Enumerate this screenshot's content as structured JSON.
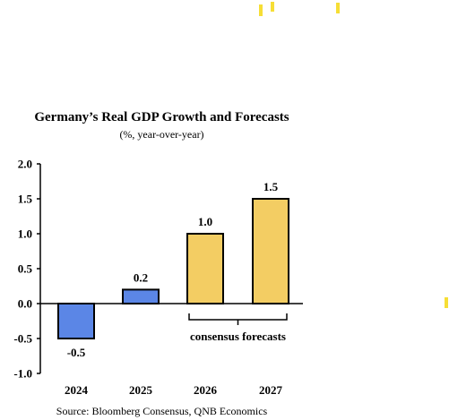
{
  "chart_data": {
    "type": "bar",
    "title": "Germany’s Real GDP Growth and Forecasts",
    "subtitle": "(%, year-over-year)",
    "categories": [
      "2024",
      "2025",
      "2026",
      "2027"
    ],
    "values": [
      -0.5,
      0.2,
      1.0,
      1.5
    ],
    "data_labels": [
      "-0.5",
      "0.2",
      "1.0",
      "1.5"
    ],
    "ylim": [
      -1.0,
      2.0
    ],
    "yticks": [
      "2.0",
      "1.5",
      "1.0",
      "0.5",
      "0.0",
      "-0.5",
      "-1.0"
    ],
    "xlabel": "",
    "ylabel": "",
    "grid": false,
    "bar_colors": [
      "#5b86e6",
      "#5b86e6",
      "#f3cd63",
      "#f3cd63"
    ],
    "annotation": {
      "text": "consensus forecasts",
      "spans": [
        "2026",
        "2027"
      ]
    },
    "source": "Source: Bloomberg Consensus, QNB Economics"
  }
}
